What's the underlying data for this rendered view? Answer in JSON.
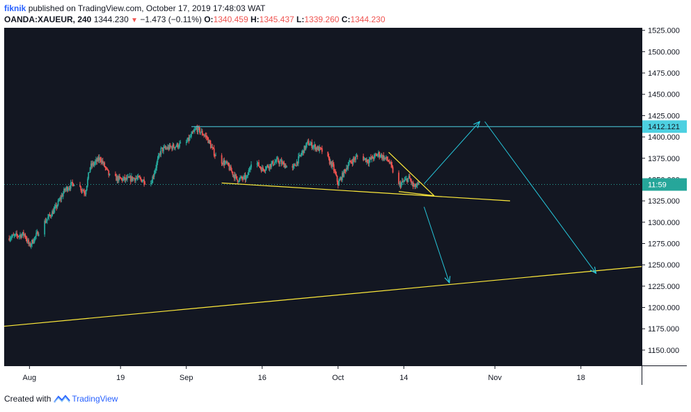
{
  "header": {
    "user": "fiknik",
    "published": "published on TradingView.com, October 17, 2019 17:48:03 WAT",
    "symbol": "OANDA:XAUEUR, 240",
    "last": "1344.230",
    "change_arrow": "▼",
    "change": "−1.473 (−0.11%)",
    "o_label": "O:",
    "o_value": "1340.459",
    "h_label": "H:",
    "h_value": "1345.437",
    "l_label": "L:",
    "l_value": "1339.260",
    "c_label": "C:",
    "c_value": "1344.230"
  },
  "footer": {
    "created_with": "Created with",
    "brand": "TradingView",
    "logo_icon": "tradingview-logo-icon"
  },
  "colors": {
    "background": "#131722",
    "up": "#26a69a",
    "down": "#ef5350",
    "trendline": "#ffeb3b",
    "arrow": "#26c6da",
    "resistance": "#4dd0e1",
    "axis_text": "#131722"
  },
  "chart_data": {
    "type": "candlestick",
    "y_ticks": [
      "1525.000",
      "1500.000",
      "1475.000",
      "1450.000",
      "1425.000",
      "1400.000",
      "1375.000",
      "1350.000",
      "1325.000",
      "1300.000",
      "1275.000",
      "1250.000",
      "1225.000",
      "1200.000",
      "1175.000",
      "1150.000"
    ],
    "y_tick_values": [
      1525,
      1500,
      1475,
      1450,
      1425,
      1400,
      1375,
      1350,
      1325,
      1300,
      1275,
      1250,
      1225,
      1200,
      1175,
      1150
    ],
    "ylim": [
      1132,
      1528
    ],
    "x_ticks": [
      {
        "label": "Aug",
        "date": "2019-08-01"
      },
      {
        "label": "19",
        "date": "2019-08-19"
      },
      {
        "label": "Sep",
        "date": "2019-09-01"
      },
      {
        "label": "16",
        "date": "2019-09-16"
      },
      {
        "label": "Oct",
        "date": "2019-10-01"
      },
      {
        "label": "14",
        "date": "2019-10-14"
      },
      {
        "label": "Nov",
        "date": "2019-11-01"
      },
      {
        "label": "18",
        "date": "2019-11-18"
      }
    ],
    "xlim": [
      "2019-07-27",
      "2019-11-30"
    ],
    "price_label": {
      "value": "1412.121",
      "price": 1412.121
    },
    "countdown_label": {
      "value": "11:59",
      "price": 1344.23
    },
    "closes": [
      {
        "date": "2019-07-27",
        "close": 1281
      },
      {
        "date": "2019-07-31",
        "close": 1286
      },
      {
        "date": "2019-08-01",
        "close": 1272
      },
      {
        "date": "2019-08-04",
        "close": 1300
      },
      {
        "date": "2019-08-06",
        "close": 1315
      },
      {
        "date": "2019-08-08",
        "close": 1338
      },
      {
        "date": "2019-08-10",
        "close": 1347
      },
      {
        "date": "2019-08-12",
        "close": 1335
      },
      {
        "date": "2019-08-13",
        "close": 1365
      },
      {
        "date": "2019-08-15",
        "close": 1375
      },
      {
        "date": "2019-08-17",
        "close": 1352
      },
      {
        "date": "2019-08-20",
        "close": 1350
      },
      {
        "date": "2019-08-22",
        "close": 1352
      },
      {
        "date": "2019-08-25",
        "close": 1346
      },
      {
        "date": "2019-08-27",
        "close": 1385
      },
      {
        "date": "2019-08-29",
        "close": 1388
      },
      {
        "date": "2019-09-01",
        "close": 1393
      },
      {
        "date": "2019-09-03",
        "close": 1410
      },
      {
        "date": "2019-09-05",
        "close": 1400
      },
      {
        "date": "2019-09-07",
        "close": 1375
      },
      {
        "date": "2019-09-09",
        "close": 1368
      },
      {
        "date": "2019-09-11",
        "close": 1350
      },
      {
        "date": "2019-09-13",
        "close": 1352
      },
      {
        "date": "2019-09-14",
        "close": 1375
      },
      {
        "date": "2019-09-16",
        "close": 1362
      },
      {
        "date": "2019-09-19",
        "close": 1372
      },
      {
        "date": "2019-09-22",
        "close": 1362
      },
      {
        "date": "2019-09-25",
        "close": 1393
      },
      {
        "date": "2019-09-28",
        "close": 1383
      },
      {
        "date": "2019-09-30",
        "close": 1365
      },
      {
        "date": "2019-10-01",
        "close": 1345
      },
      {
        "date": "2019-10-03",
        "close": 1368
      },
      {
        "date": "2019-10-05",
        "close": 1378
      },
      {
        "date": "2019-10-07",
        "close": 1372
      },
      {
        "date": "2019-10-09",
        "close": 1380
      },
      {
        "date": "2019-10-11",
        "close": 1372
      },
      {
        "date": "2019-10-13",
        "close": 1343
      },
      {
        "date": "2019-10-15",
        "close": 1352
      },
      {
        "date": "2019-10-16",
        "close": 1341
      },
      {
        "date": "2019-10-17",
        "close": 1344.23
      }
    ],
    "drawings": [
      {
        "name": "resistance-line",
        "kind": "horizontal",
        "from": "2019-09-02",
        "price": 1412.121
      },
      {
        "name": "support-trendline",
        "kind": "line",
        "p1": [
          "2019-09-08",
          1346
        ],
        "p2": [
          "2019-11-04",
          1325
        ]
      },
      {
        "name": "wedge-upper-line",
        "kind": "line",
        "p1": [
          "2019-10-11",
          1382
        ],
        "p2": [
          "2019-10-20",
          1331
        ]
      },
      {
        "name": "wedge-lower-line",
        "kind": "line",
        "p1": [
          "2019-10-13",
          1336
        ],
        "p2": [
          "2019-10-20",
          1331
        ]
      },
      {
        "name": "long-trendline",
        "kind": "line",
        "p1": [
          "2019-07-27",
          1178
        ],
        "p2": [
          "2019-11-30",
          1248
        ]
      },
      {
        "name": "arrow-up-breakout",
        "kind": "arrow",
        "p1": [
          "2019-10-18",
          1345
        ],
        "p2": [
          "2019-10-29",
          1418
        ]
      },
      {
        "name": "arrow-down-target",
        "kind": "arrow",
        "p1": [
          "2019-10-30",
          1418
        ],
        "p2": [
          "2019-11-21",
          1240
        ]
      },
      {
        "name": "arrow-down-breakdown",
        "kind": "arrow",
        "p1": [
          "2019-10-18",
          1318
        ],
        "p2": [
          "2019-10-23",
          1229
        ]
      }
    ]
  }
}
